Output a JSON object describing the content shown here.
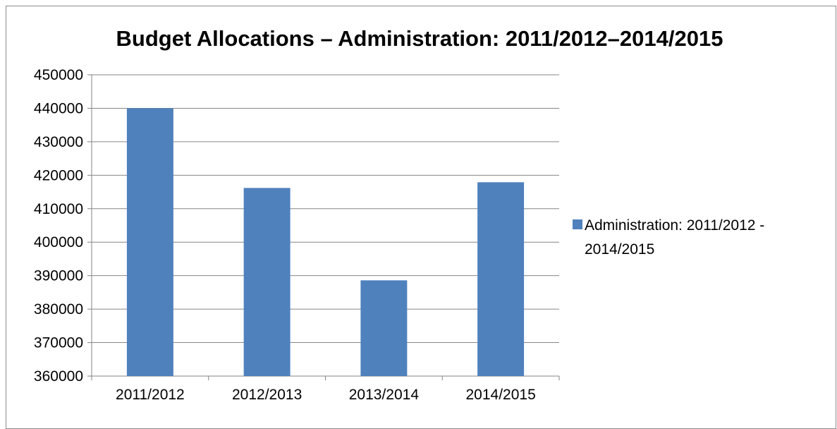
{
  "chart_data": {
    "type": "bar",
    "title": "Budget Allocations – Administration: 2011/2012–2014/2015",
    "xlabel": "",
    "ylabel": "",
    "categories": [
      "2011/2012",
      "2012/2013",
      "2013/2014",
      "2014/2015"
    ],
    "series": [
      {
        "name": "Administration: 2011/2012 - 2014/2015",
        "values": [
          440000,
          416200,
          388600,
          417900
        ],
        "color": "#4f81bd"
      }
    ],
    "ylim": [
      360000,
      450000
    ],
    "y_ticks": [
      360000,
      370000,
      380000,
      390000,
      400000,
      410000,
      420000,
      430000,
      440000,
      450000
    ],
    "grid": true,
    "legend": {
      "position": "right",
      "lines": [
        "Administration: 2011/2012 -",
        "2014/2015"
      ]
    }
  }
}
